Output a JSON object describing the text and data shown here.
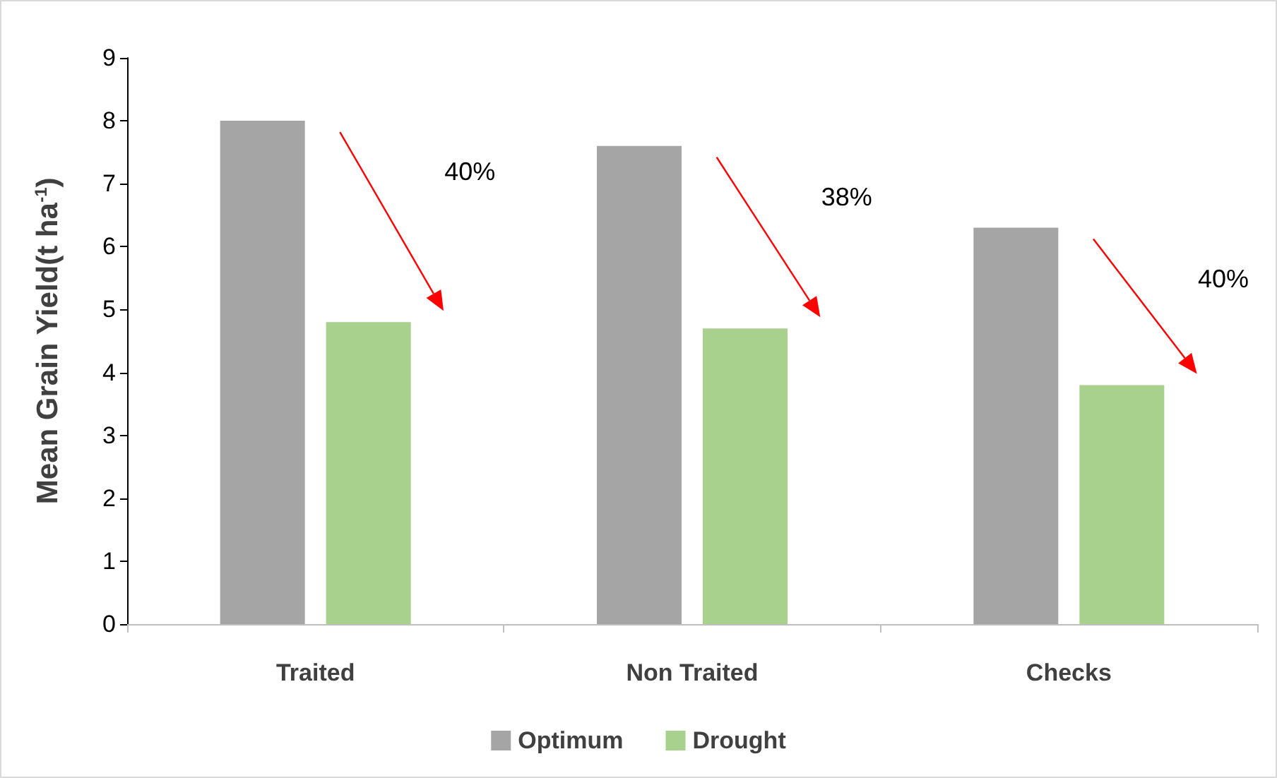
{
  "chart_data": {
    "type": "bar",
    "ylabel": "Mean Grain Yield(t ha$^{-1}$)",
    "categories": [
      "Traited",
      "Non Traited",
      "Checks"
    ],
    "series": [
      {
        "name": "Optimum",
        "color": "#a5a5a5",
        "values": [
          8.0,
          7.6,
          6.3
        ]
      },
      {
        "name": "Drought",
        "color": "#a9d18e",
        "values": [
          4.8,
          4.7,
          3.8
        ]
      }
    ],
    "ylim": [
      0,
      9
    ],
    "yticks": [
      0,
      1,
      2,
      3,
      4,
      5,
      6,
      7,
      8,
      9
    ],
    "grid": false,
    "legend": "bottom",
    "annotations": [
      "40%",
      "38%",
      "40%"
    ]
  }
}
